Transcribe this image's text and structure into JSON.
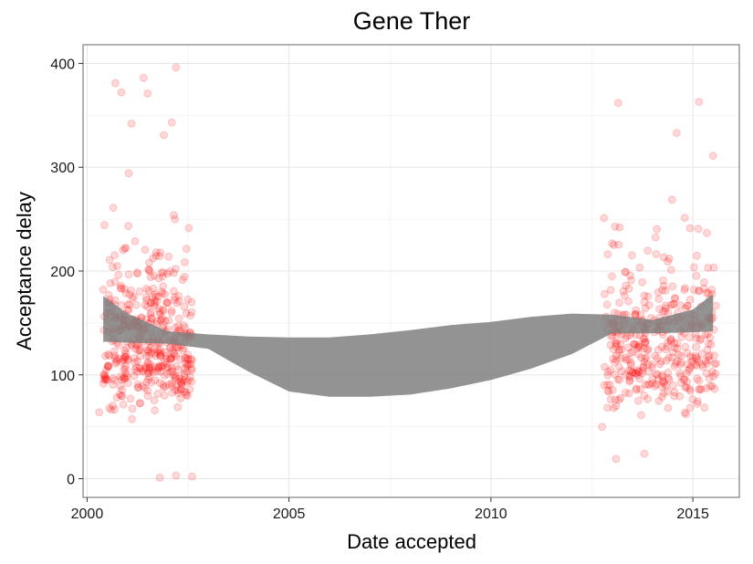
{
  "chart_data": {
    "type": "scatter",
    "title": "Gene Ther",
    "xlabel": "Date accepted",
    "ylabel": "Acceptance delay",
    "xlim": [
      1999.9,
      2016.15
    ],
    "ylim": [
      -18,
      418
    ],
    "x_ticks": [
      {
        "value": 2000,
        "label": "2000"
      },
      {
        "value": 2005,
        "label": "2005"
      },
      {
        "value": 2010,
        "label": "2010"
      },
      {
        "value": 2015,
        "label": "2015"
      }
    ],
    "y_ticks": [
      {
        "value": 0,
        "label": "0"
      },
      {
        "value": 100,
        "label": "100"
      },
      {
        "value": 200,
        "label": "200"
      },
      {
        "value": 300,
        "label": "300"
      },
      {
        "value": 400,
        "label": "400"
      }
    ],
    "grid": true,
    "point_color": "#ff0000",
    "point_alpha": 0.15,
    "ribbon_color": "#808080",
    "smooth_band": {
      "x": [
        2000.4,
        2001.0,
        2002.0,
        2003.0,
        2004.0,
        2005.0,
        2006.0,
        2007.0,
        2008.0,
        2009.0,
        2010.0,
        2011.0,
        2012.0,
        2013.0,
        2014.0,
        2015.0,
        2015.5
      ],
      "lower": [
        132,
        131,
        130,
        125,
        103,
        84,
        79,
        79,
        81,
        87,
        95,
        106,
        120,
        140,
        140,
        141,
        142
      ],
      "upper": [
        176,
        159,
        142,
        139,
        137,
        136,
        136,
        139,
        143,
        148,
        151,
        156,
        159,
        158,
        153,
        163,
        178
      ]
    },
    "clusters": [
      {
        "x_start": 2000.4,
        "x_end": 2002.6,
        "count": 450,
        "seed": 11,
        "outliers": [
          {
            "x": 2000.3,
            "y": 64
          },
          {
            "x": 2000.7,
            "y": 381
          },
          {
            "x": 2000.85,
            "y": 372
          },
          {
            "x": 2001.4,
            "y": 386
          },
          {
            "x": 2001.5,
            "y": 371
          },
          {
            "x": 2002.2,
            "y": 396
          },
          {
            "x": 2001.1,
            "y": 342
          },
          {
            "x": 2002.1,
            "y": 343
          },
          {
            "x": 2001.9,
            "y": 331
          },
          {
            "x": 2002.6,
            "y": 2
          },
          {
            "x": 2001.8,
            "y": 1
          },
          {
            "x": 2002.2,
            "y": 3
          }
        ]
      },
      {
        "x_start": 2012.8,
        "x_end": 2015.6,
        "count": 400,
        "seed": 29,
        "outliers": [
          {
            "x": 2013.15,
            "y": 362
          },
          {
            "x": 2015.15,
            "y": 363
          },
          {
            "x": 2014.6,
            "y": 333
          },
          {
            "x": 2015.5,
            "y": 311
          },
          {
            "x": 2012.8,
            "y": 251
          },
          {
            "x": 2013.1,
            "y": 19
          },
          {
            "x": 2013.8,
            "y": 24
          },
          {
            "x": 2012.75,
            "y": 50
          }
        ]
      }
    ]
  }
}
